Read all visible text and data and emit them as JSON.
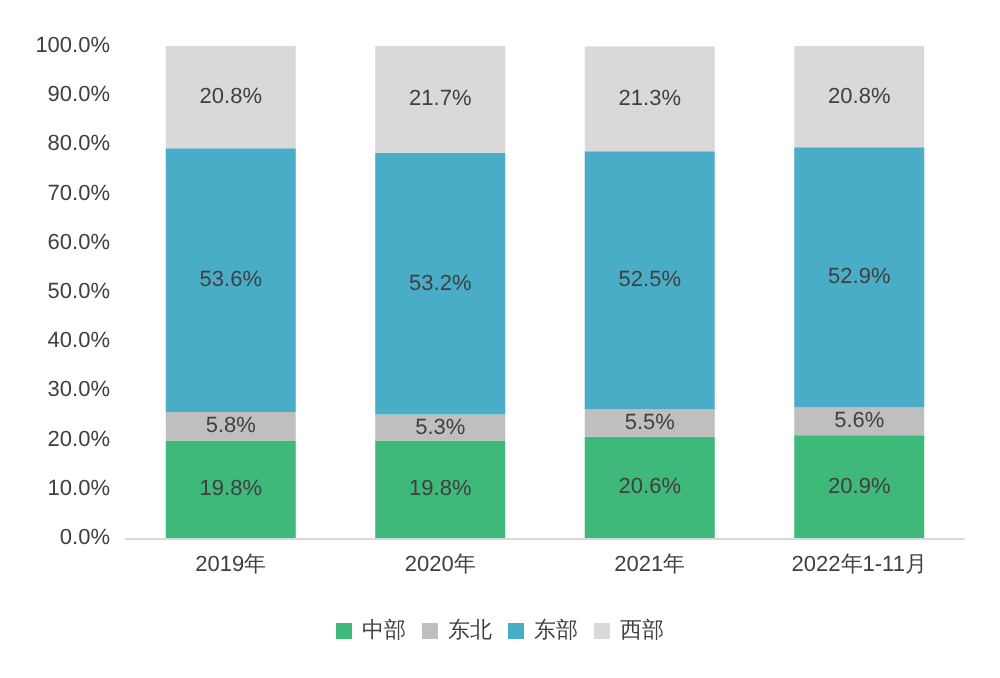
{
  "chart_data": {
    "type": "bar",
    "stacked": true,
    "categories": [
      "2019年",
      "2020年",
      "2021年",
      "2022年1-11月"
    ],
    "series": [
      {
        "name": "中部",
        "color": "#3eb97a",
        "values": [
          19.8,
          19.8,
          20.6,
          20.9
        ],
        "value_labels": [
          "19.8%",
          "19.8%",
          "20.6%",
          "20.9%"
        ]
      },
      {
        "name": "东北",
        "color": "#bfbfbf",
        "values": [
          5.8,
          5.3,
          5.5,
          5.6
        ],
        "value_labels": [
          "5.8%",
          "5.3%",
          "5.5%",
          "5.6%"
        ]
      },
      {
        "name": "东部",
        "color": "#4aadc8",
        "values": [
          53.6,
          53.2,
          52.5,
          52.9
        ],
        "value_labels": [
          "53.6%",
          "53.2%",
          "52.5%",
          "52.9%"
        ]
      },
      {
        "name": "西部",
        "color": "#d9d9d9",
        "values": [
          20.8,
          21.7,
          21.3,
          20.8
        ],
        "value_labels": [
          "20.8%",
          "21.7%",
          "21.3%",
          "20.8%"
        ]
      }
    ],
    "ylim": [
      0,
      100
    ],
    "yticks": [
      {
        "value": 0,
        "label": "0.0%"
      },
      {
        "value": 10,
        "label": "10.0%"
      },
      {
        "value": 20,
        "label": "20.0%"
      },
      {
        "value": 30,
        "label": "30.0%"
      },
      {
        "value": 40,
        "label": "40.0%"
      },
      {
        "value": 50,
        "label": "50.0%"
      },
      {
        "value": 60,
        "label": "60.0%"
      },
      {
        "value": 70,
        "label": "70.0%"
      },
      {
        "value": 80,
        "label": "80.0%"
      },
      {
        "value": 90,
        "label": "90.0%"
      },
      {
        "value": 100,
        "label": "100.0%"
      }
    ],
    "grid": false,
    "legend": "bottom"
  }
}
